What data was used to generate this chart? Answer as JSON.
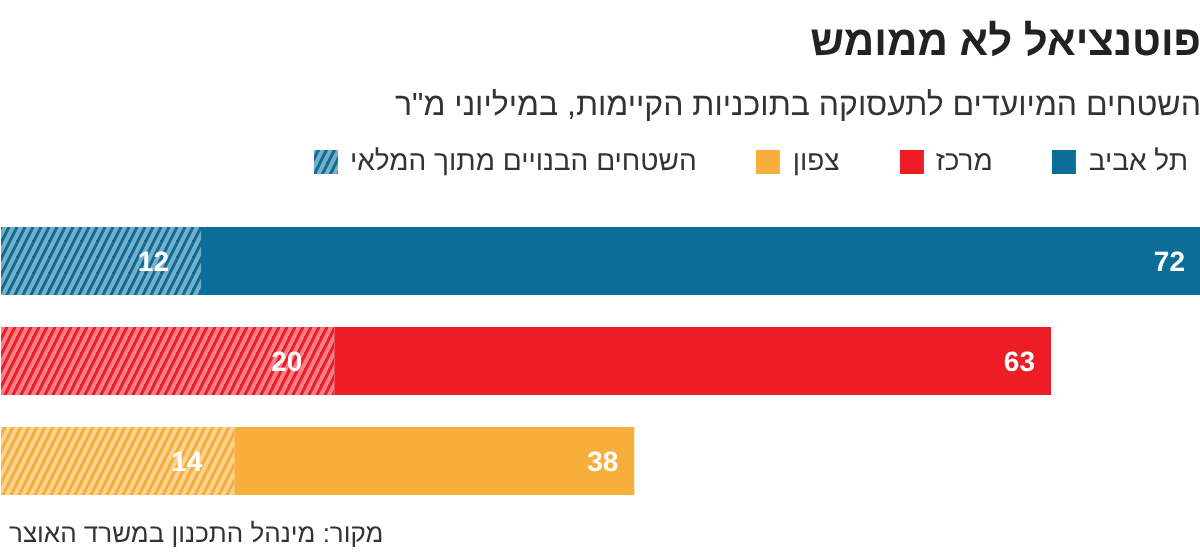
{
  "chart_data": {
    "type": "bar",
    "orientation": "horizontal",
    "stacked": true,
    "title": "פוטנציאל לא ממומש",
    "subtitle": "השטחים המיועדים לתעסוקה בתוכניות הקיימות, במיליוני מ\"ר",
    "categories": [
      null,
      null,
      null
    ],
    "series": [
      {
        "name": "השטחים הבנויים מתוך המלאי",
        "colors": [
          "#0b6e99",
          "#ee1c25",
          "#f7ae3b"
        ],
        "values": [
          12,
          20,
          14
        ],
        "value_labels": [
          "12",
          "20",
          "14"
        ]
      },
      {
        "name": "צפון",
        "color": "#f7ae3b",
        "values": [
          null,
          null,
          24
        ]
      },
      {
        "name": "מרכז",
        "color": "#ee1c25",
        "values": [
          null,
          43,
          null
        ]
      },
      {
        "name": "תל אביב",
        "color": "#0b6e99",
        "values": [
          60,
          null,
          null
        ]
      }
    ],
    "totals": [
      "72",
      "63",
      "38"
    ],
    "xlim": [
      0,
      72
    ],
    "tick_labels": false,
    "grid": false,
    "legend": "top right",
    "annotations": [
      "מקור: מינהל התכנון במשרד האוצר"
    ]
  }
}
